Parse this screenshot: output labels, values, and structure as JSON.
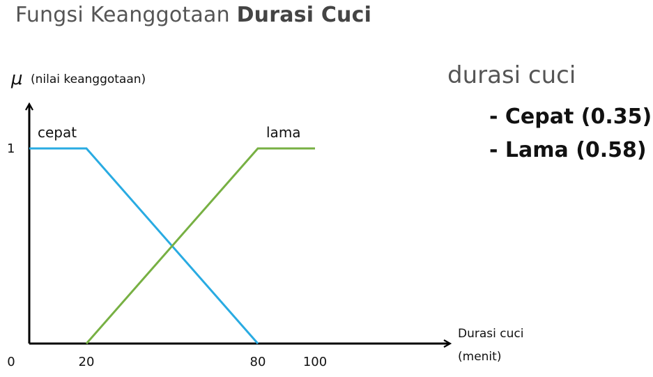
{
  "title": {
    "prefix": "Fungsi Keanggotaan",
    "bold": "Durasi Cuci"
  },
  "side_panel": {
    "heading": "durasi cuci",
    "items": [
      "- Cepat (0.35)",
      "- Lama (0.58)"
    ]
  },
  "chart_data": {
    "type": "line",
    "ylabel_symbol": "μ",
    "ylabel_text": "(nilai keanggotaan)",
    "xlabel_line1": "Durasi cuci",
    "xlabel_line2": "(menit)",
    "xlim": [
      0,
      100
    ],
    "ylim": [
      0,
      1
    ],
    "x_ticks": [
      {
        "value": 0,
        "label": "0"
      },
      {
        "value": 20,
        "label": "20"
      },
      {
        "value": 80,
        "label": "80"
      },
      {
        "value": 100,
        "label": "100"
      }
    ],
    "y_ticks": [
      {
        "value": 1,
        "label": "1"
      }
    ],
    "series": [
      {
        "name": "cepat",
        "color": "#29abe2",
        "x": [
          0,
          20,
          80
        ],
        "y": [
          1,
          1,
          0
        ]
      },
      {
        "name": "lama",
        "color": "#77b043",
        "x": [
          20,
          80,
          100
        ],
        "y": [
          0,
          1,
          1
        ]
      }
    ],
    "grid": false,
    "legend": "inline labels above each curve"
  }
}
